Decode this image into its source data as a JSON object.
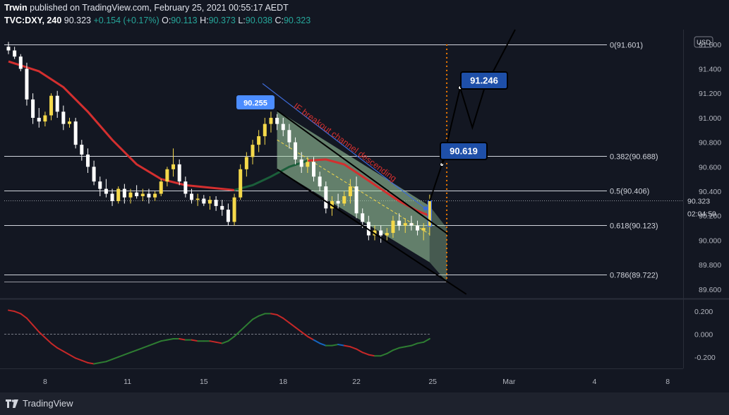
{
  "header": {
    "publisher": "Trwin",
    "published_text": "published on TradingView.com, February 25, 2021 00:55:17 AEDT",
    "symbol": "TVC:DXY, 240",
    "last": "90.323",
    "change": "+0.154 (+0.17%)",
    "o_label": "O:",
    "o_value": "90.113",
    "h_label": "H:",
    "h_value": "90.373",
    "l_label": "L:",
    "l_value": "90.038",
    "c_label": "C:",
    "c_value": "90.323"
  },
  "footer": {
    "brand": "TradingView"
  },
  "colors": {
    "background": "#131722",
    "up": "#f5d94a",
    "down": "#ffffff",
    "ma_red": "#d32f2f",
    "ma_green": "#1b5e3a",
    "channel_fill": "#a5d6a7",
    "accent": "#1e4fa8",
    "fib_orange": "#f57c00"
  },
  "chart_data": [
    {
      "type": "candlestick",
      "title": "",
      "y_axis": {
        "ticks": [
          89.6,
          89.8,
          90.0,
          90.2,
          90.4,
          90.6,
          90.8,
          91.0,
          91.2,
          91.4,
          91.6
        ],
        "range": [
          89.53,
          91.72
        ],
        "unit_badge": "USD"
      },
      "x_axis": {
        "ticks": [
          "8",
          "11",
          "15",
          "18",
          "22",
          "25",
          "Mar",
          "4",
          "8"
        ]
      },
      "last_price_label": "90.323",
      "countdown_label": "02:04:59",
      "fib_levels": [
        {
          "label": "0(91.601)",
          "value": 91.601
        },
        {
          "label": "0.382(90.688)",
          "value": 90.688
        },
        {
          "label": "0.5(90.406)",
          "value": 90.406
        },
        {
          "label": "0.618(90.123)",
          "value": 90.123
        },
        {
          "label": "0.786(89.722)",
          "value": 89.722
        }
      ],
      "extra_line": 89.66,
      "callouts": [
        {
          "text": "90.255",
          "value": 90.255,
          "style": "light"
        },
        {
          "text": "91.246",
          "value": 91.246,
          "style": "dark"
        },
        {
          "text": "90.619",
          "value": 90.619,
          "style": "dark"
        }
      ],
      "annotation": "IF breakout channel descending",
      "candles": [
        [
          91.58,
          91.62,
          91.52,
          91.55
        ],
        [
          91.55,
          91.58,
          91.48,
          91.5
        ],
        [
          91.5,
          91.52,
          91.38,
          91.4
        ],
        [
          91.4,
          91.45,
          91.1,
          91.15
        ],
        [
          91.15,
          91.2,
          90.95,
          91.0
        ],
        [
          91.0,
          91.08,
          90.92,
          90.97
        ],
        [
          90.97,
          91.05,
          90.93,
          91.02
        ],
        [
          91.02,
          91.2,
          90.98,
          91.18
        ],
        [
          91.18,
          91.22,
          91.0,
          91.05
        ],
        [
          91.05,
          91.1,
          90.9,
          90.95
        ],
        [
          90.95,
          91.0,
          90.92,
          90.97
        ],
        [
          90.97,
          91.0,
          90.75,
          90.78
        ],
        [
          90.78,
          90.82,
          90.65,
          90.7
        ],
        [
          90.7,
          90.75,
          90.55,
          90.6
        ],
        [
          90.6,
          90.65,
          90.45,
          90.48
        ],
        [
          90.48,
          90.52,
          90.36,
          90.42
        ],
        [
          90.42,
          90.5,
          90.35,
          90.38
        ],
        [
          90.38,
          90.42,
          90.28,
          90.32
        ],
        [
          90.32,
          90.44,
          90.3,
          90.42
        ],
        [
          90.42,
          90.46,
          90.3,
          90.35
        ],
        [
          90.35,
          90.42,
          90.3,
          90.39
        ],
        [
          90.39,
          90.45,
          90.34,
          90.36
        ],
        [
          90.36,
          90.42,
          90.32,
          90.38
        ],
        [
          90.38,
          90.42,
          90.3,
          90.35
        ],
        [
          90.35,
          90.4,
          90.32,
          90.38
        ],
        [
          90.38,
          90.5,
          90.36,
          90.48
        ],
        [
          90.48,
          90.6,
          90.44,
          90.58
        ],
        [
          90.58,
          90.75,
          90.52,
          90.62
        ],
        [
          90.62,
          90.66,
          90.45,
          90.48
        ],
        [
          90.48,
          90.52,
          90.35,
          90.38
        ],
        [
          90.38,
          90.42,
          90.3,
          90.33
        ],
        [
          90.33,
          90.38,
          90.28,
          90.34
        ],
        [
          90.34,
          90.37,
          90.28,
          90.3
        ],
        [
          90.3,
          90.36,
          90.25,
          90.33
        ],
        [
          90.33,
          90.36,
          90.24,
          90.28
        ],
        [
          90.28,
          90.33,
          90.2,
          90.25
        ],
        [
          90.25,
          90.3,
          90.12,
          90.15
        ],
        [
          90.15,
          90.38,
          90.12,
          90.35
        ],
        [
          90.35,
          90.62,
          90.33,
          90.58
        ],
        [
          90.58,
          90.72,
          90.52,
          90.68
        ],
        [
          90.68,
          90.82,
          90.62,
          90.78
        ],
        [
          90.78,
          90.9,
          90.72,
          90.85
        ],
        [
          90.85,
          91.0,
          90.78,
          90.95
        ],
        [
          90.95,
          91.05,
          90.88,
          91.0
        ],
        [
          91.0,
          91.03,
          90.9,
          90.95
        ],
        [
          90.95,
          91.0,
          90.85,
          90.9
        ],
        [
          90.9,
          90.95,
          90.75,
          90.8
        ],
        [
          90.8,
          90.84,
          90.62,
          90.66
        ],
        [
          90.66,
          90.72,
          90.55,
          90.6
        ],
        [
          90.6,
          90.68,
          90.55,
          90.64
        ],
        [
          90.64,
          90.68,
          90.48,
          90.52
        ],
        [
          90.52,
          90.56,
          90.4,
          90.44
        ],
        [
          90.44,
          90.48,
          90.22,
          90.26
        ],
        [
          90.26,
          90.36,
          90.2,
          90.32
        ],
        [
          90.32,
          90.38,
          90.26,
          90.3
        ],
        [
          90.3,
          90.4,
          90.28,
          90.36
        ],
        [
          90.36,
          90.5,
          90.3,
          90.44
        ],
        [
          90.44,
          90.52,
          90.18,
          90.22
        ],
        [
          90.22,
          90.26,
          90.1,
          90.15
        ],
        [
          90.15,
          90.2,
          90.0,
          90.04
        ],
        [
          90.04,
          90.12,
          90.0,
          90.08
        ],
        [
          90.08,
          90.12,
          89.98,
          90.04
        ],
        [
          90.04,
          90.1,
          90.0,
          90.06
        ],
        [
          90.06,
          90.2,
          90.02,
          90.16
        ],
        [
          90.16,
          90.22,
          90.08,
          90.12
        ],
        [
          90.12,
          90.18,
          90.06,
          90.14
        ],
        [
          90.14,
          90.2,
          90.08,
          90.12
        ],
        [
          90.12,
          90.16,
          90.04,
          90.08
        ],
        [
          90.08,
          90.14,
          90.0,
          90.1
        ],
        [
          90.113,
          90.373,
          90.038,
          90.323
        ]
      ],
      "ma_segments": [
        {
          "color": "red",
          "points": [
            [
              0,
              91.46
            ],
            [
              5,
              91.38
            ],
            [
              9,
              91.25
            ],
            [
              13,
              91.05
            ],
            [
              17,
              90.82
            ],
            [
              21,
              90.62
            ],
            [
              25,
              90.5
            ],
            [
              29,
              90.45
            ],
            [
              33,
              90.43
            ],
            [
              37,
              90.41
            ]
          ]
        },
        {
          "color": "green",
          "points": [
            [
              37,
              90.41
            ],
            [
              40,
              90.45
            ],
            [
              43,
              90.52
            ],
            [
              46,
              90.6
            ],
            [
              49,
              90.65
            ]
          ]
        },
        {
          "color": "red",
          "points": [
            [
              49,
              90.65
            ],
            [
              52,
              90.66
            ],
            [
              55,
              90.62
            ],
            [
              58,
              90.52
            ],
            [
              61,
              90.42
            ],
            [
              64,
              90.32
            ],
            [
              67,
              90.24
            ],
            [
              69,
              90.2
            ]
          ]
        }
      ],
      "channel": {
        "upper": [
          [
            44,
            91.06
          ],
          [
            69,
            90.28
          ]
        ],
        "lower": [
          [
            44,
            90.58
          ],
          [
            69,
            89.82
          ]
        ],
        "lower_ext": [
          [
            69,
            89.82
          ],
          [
            75,
            89.56
          ]
        ],
        "upper_ext": [
          [
            69,
            90.28
          ],
          [
            72,
            90.05
          ]
        ]
      },
      "projection": [
        [
          69,
          90.32
        ],
        [
          71,
          90.619
        ],
        [
          74,
          91.246
        ],
        [
          76,
          90.92
        ],
        [
          78,
          91.246
        ],
        [
          83,
          91.72
        ]
      ],
      "dotted_vertical_x": 71.8
    },
    {
      "type": "line",
      "title": "",
      "y_axis": {
        "ticks": [
          -0.2,
          0.0,
          0.2
        ],
        "range": [
          -0.3,
          0.3
        ]
      },
      "zero_line": 0.0,
      "series": [
        {
          "values": [
            0.21,
            0.2,
            0.18,
            0.14,
            0.08,
            0.02,
            -0.03,
            -0.08,
            -0.12,
            -0.15,
            -0.18,
            -0.21,
            -0.23,
            -0.25,
            -0.26,
            -0.25,
            -0.24,
            -0.22,
            -0.2,
            -0.18,
            -0.16,
            -0.14,
            -0.12,
            -0.1,
            -0.08,
            -0.06,
            -0.05,
            -0.04,
            -0.04,
            -0.05,
            -0.05,
            -0.06,
            -0.06,
            -0.06,
            -0.07,
            -0.08,
            -0.06,
            -0.02,
            0.03,
            0.08,
            0.13,
            0.16,
            0.18,
            0.18,
            0.17,
            0.14,
            0.1,
            0.06,
            0.02,
            -0.02,
            -0.05,
            -0.08,
            -0.1,
            -0.1,
            -0.09,
            -0.1,
            -0.11,
            -0.13,
            -0.16,
            -0.18,
            -0.19,
            -0.19,
            -0.17,
            -0.14,
            -0.12,
            -0.11,
            -0.1,
            -0.08,
            -0.07,
            -0.04
          ]
        }
      ]
    }
  ]
}
